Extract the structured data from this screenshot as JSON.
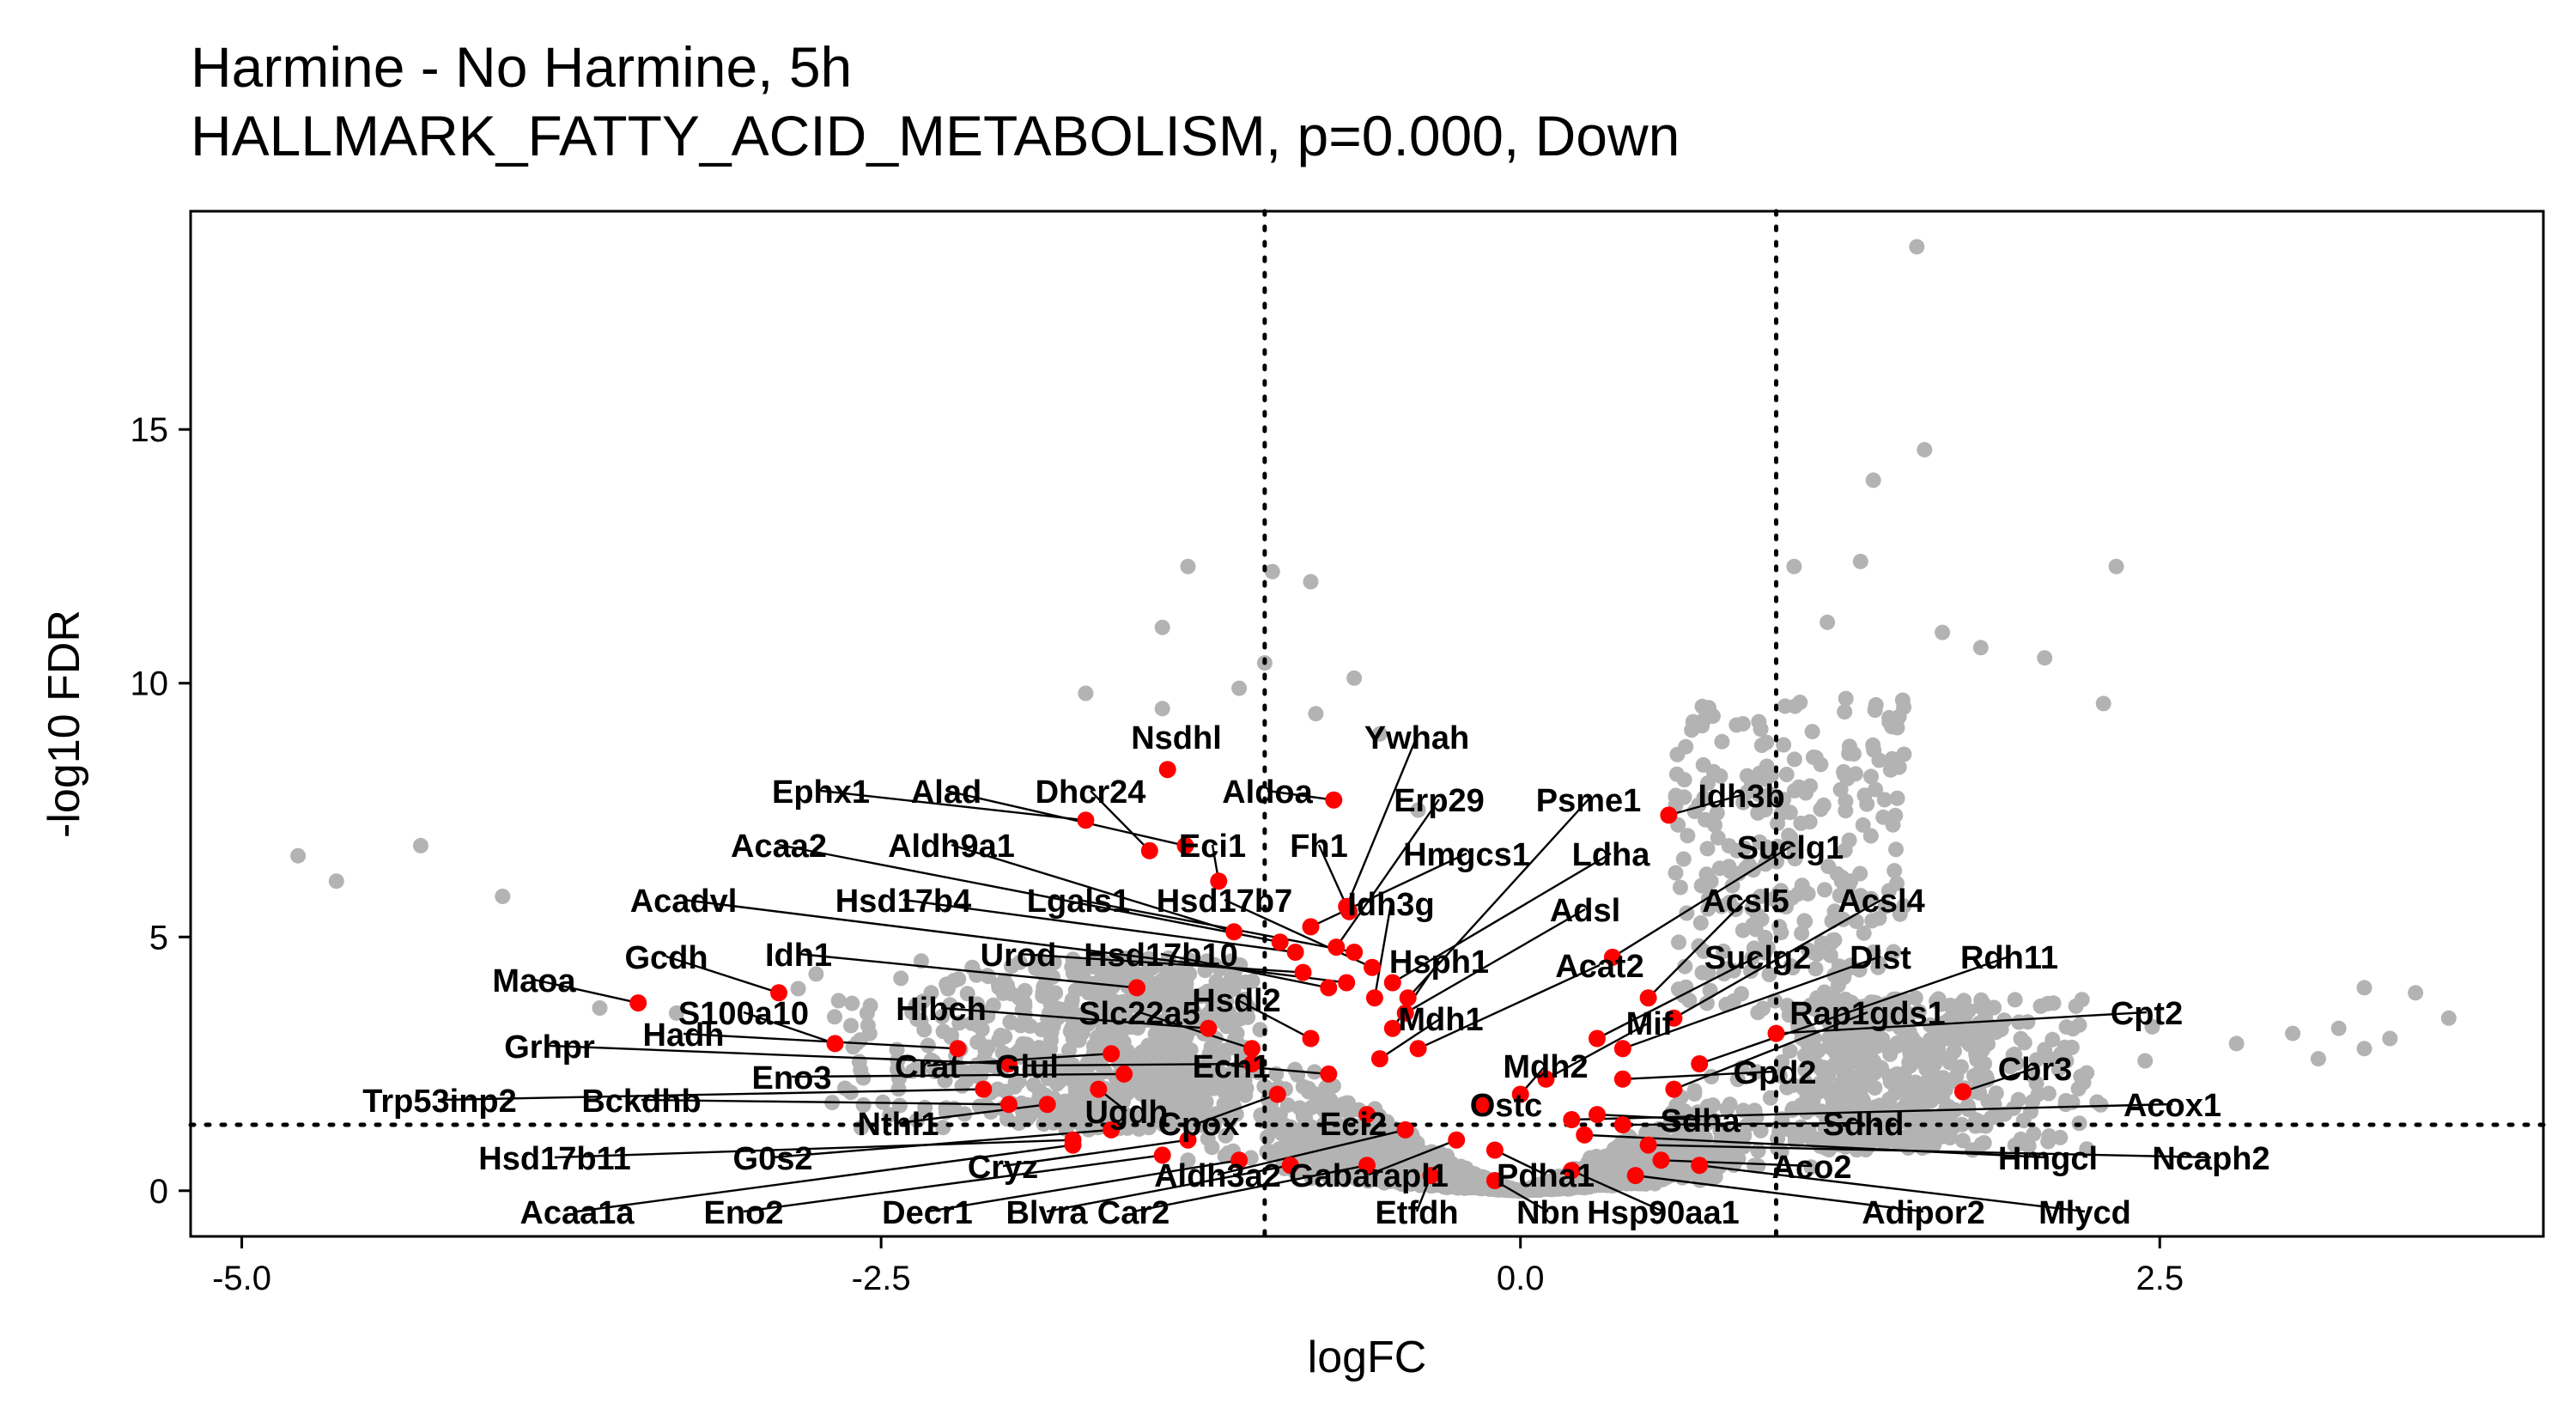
{
  "chart_data": {
    "type": "scatter",
    "title": "Harmine - No Harmine, 5h",
    "subtitle": "HALLMARK_FATTY_ACID_METABOLISM, p=0.000, Down",
    "xlabel": "logFC",
    "ylabel": "-log10 FDR",
    "xlim": [
      -5.2,
      4.0
    ],
    "ylim": [
      -0.9,
      19.3
    ],
    "xticks": [
      -5.0,
      -2.5,
      0.0,
      2.5
    ],
    "xtick_labels": [
      "-5.0",
      "-2.5",
      "0.0",
      "2.5"
    ],
    "yticks": [
      0,
      5,
      10,
      15
    ],
    "ytick_labels": [
      "0",
      "5",
      "10",
      "15"
    ],
    "grid": false,
    "legend": "none",
    "reference_lines": {
      "vertical": [
        -1,
        1
      ],
      "horizontal": [
        1.3
      ],
      "style": "dotted"
    },
    "colors": {
      "background_genes": "#b3b3b3",
      "pathway_genes": "#ff0000",
      "label_text": "#000000",
      "leader_lines": "#000000"
    },
    "background_points": [
      [
        -4.78,
        6.6
      ],
      [
        -4.63,
        6.1
      ],
      [
        -4.3,
        6.8
      ],
      [
        -3.98,
        5.8
      ],
      [
        -3.6,
        3.6
      ],
      [
        -3.3,
        3.5
      ],
      [
        1.55,
        18.6
      ],
      [
        1.58,
        14.6
      ],
      [
        1.38,
        14.0
      ],
      [
        2.33,
        12.3
      ],
      [
        1.07,
        12.3
      ],
      [
        1.33,
        12.4
      ],
      [
        1.2,
        11.2
      ],
      [
        1.65,
        11.0
      ],
      [
        1.8,
        10.7
      ],
      [
        2.05,
        10.5
      ],
      [
        2.28,
        9.6
      ],
      [
        0.87,
        9.2
      ],
      [
        1.5,
        8.6
      ],
      [
        3.3,
        4.0
      ],
      [
        3.5,
        3.9
      ],
      [
        3.63,
        3.4
      ],
      [
        3.2,
        3.2
      ],
      [
        3.4,
        3.0
      ],
      [
        3.3,
        2.8
      ],
      [
        3.02,
        3.1
      ],
      [
        2.8,
        2.9
      ],
      [
        3.12,
        2.6
      ],
      [
        -0.82,
        12.0
      ],
      [
        -0.97,
        12.2
      ],
      [
        -1.3,
        12.3
      ],
      [
        -1.4,
        11.1
      ],
      [
        -1.4,
        9.5
      ],
      [
        -1.1,
        9.9
      ],
      [
        -1.0,
        10.4
      ],
      [
        -1.7,
        9.8
      ],
      [
        -0.65,
        10.1
      ],
      [
        -0.8,
        9.4
      ],
      [
        -0.55,
        9.0
      ],
      [
        -0.4,
        7.5
      ]
    ],
    "points": [
      {
        "gene": "Nsdhl",
        "x": -1.38,
        "y": 8.3
      },
      {
        "gene": "Ywhah",
        "x": -0.68,
        "y": 5.6
      },
      {
        "gene": "Ephx1",
        "x": -1.7,
        "y": 7.3
      },
      {
        "gene": "Alad",
        "x": -1.31,
        "y": 6.8
      },
      {
        "gene": "Dhcr24",
        "x": -1.45,
        "y": 6.7
      },
      {
        "gene": "Aldoa",
        "x": -0.73,
        "y": 7.7
      },
      {
        "gene": "Erp29",
        "x": -0.72,
        "y": 4.8
      },
      {
        "gene": "Psme1",
        "x": -0.44,
        "y": 3.8
      },
      {
        "gene": "Idh3b",
        "x": 0.58,
        "y": 7.4
      },
      {
        "gene": "Eci1",
        "x": -1.18,
        "y": 6.1
      },
      {
        "gene": "Fh1",
        "x": -0.67,
        "y": 5.5
      },
      {
        "gene": "Hmgcs1",
        "x": -0.82,
        "y": 5.2
      },
      {
        "gene": "Ldha",
        "x": -0.5,
        "y": 4.1
      },
      {
        "gene": "Suclg1",
        "x": 0.36,
        "y": 4.6
      },
      {
        "gene": "Acaa2",
        "x": -0.94,
        "y": 4.9
      },
      {
        "gene": "Aldh9a1",
        "x": -1.12,
        "y": 5.1
      },
      {
        "gene": "Idh3g",
        "x": -0.57,
        "y": 3.8
      },
      {
        "gene": "Adsl",
        "x": -0.45,
        "y": 3.5
      },
      {
        "gene": "Acadvl",
        "x": -0.68,
        "y": 4.1
      },
      {
        "gene": "Hsd17b4",
        "x": -0.88,
        "y": 4.7
      },
      {
        "gene": "Lgals1",
        "x": -0.65,
        "y": 4.7
      },
      {
        "gene": "Hsd17b7",
        "x": -0.58,
        "y": 4.4
      },
      {
        "gene": "Acsl5",
        "x": 0.5,
        "y": 3.8
      },
      {
        "gene": "Acsl4",
        "x": 0.6,
        "y": 3.4
      },
      {
        "gene": "Idh1",
        "x": -1.5,
        "y": 4.0
      },
      {
        "gene": "Urod",
        "x": -0.85,
        "y": 4.3
      },
      {
        "gene": "Hsd17b10",
        "x": -0.75,
        "y": 4.0
      },
      {
        "gene": "Hsph1",
        "x": -0.5,
        "y": 3.2
      },
      {
        "gene": "Acat2",
        "x": -0.4,
        "y": 2.8
      },
      {
        "gene": "Suclg2",
        "x": 0.3,
        "y": 3.0
      },
      {
        "gene": "Dlst",
        "x": 0.4,
        "y": 2.8
      },
      {
        "gene": "Rdh11",
        "x": 0.7,
        "y": 2.5
      },
      {
        "gene": "Maoa",
        "x": -3.45,
        "y": 3.7
      },
      {
        "gene": "Gcdh",
        "x": -2.9,
        "y": 3.9
      },
      {
        "gene": "Hibch",
        "x": -1.22,
        "y": 3.2
      },
      {
        "gene": "Hsdl2",
        "x": -0.82,
        "y": 3.0
      },
      {
        "gene": "Mdh1",
        "x": -0.55,
        "y": 2.6
      },
      {
        "gene": "Mif",
        "x": 0.1,
        "y": 2.2
      },
      {
        "gene": "Rap1gds1",
        "x": 0.6,
        "y": 2.0
      },
      {
        "gene": "Cpt2",
        "x": 1.0,
        "y": 3.1
      },
      {
        "gene": "S100a10",
        "x": -2.68,
        "y": 2.9
      },
      {
        "gene": "Hadh",
        "x": -2.2,
        "y": 2.8
      },
      {
        "gene": "Slc22a5",
        "x": -1.05,
        "y": 2.8
      },
      {
        "gene": "Grhpr",
        "x": -2.0,
        "y": 2.5
      },
      {
        "gene": "Eno3",
        "x": -1.55,
        "y": 2.3
      },
      {
        "gene": "Crat",
        "x": -1.6,
        "y": 2.7
      },
      {
        "gene": "Glul",
        "x": -1.05,
        "y": 2.5
      },
      {
        "gene": "Ech1",
        "x": -0.75,
        "y": 2.3
      },
      {
        "gene": "Mdh2",
        "x": 0.0,
        "y": 1.9
      },
      {
        "gene": "Gpd2",
        "x": 0.4,
        "y": 2.2
      },
      {
        "gene": "Cbr3",
        "x": 1.73,
        "y": 1.95
      },
      {
        "gene": "Trp53inp2",
        "x": -2.1,
        "y": 2.0
      },
      {
        "gene": "Bckdhb",
        "x": -2.0,
        "y": 1.7
      },
      {
        "gene": "Nthl1",
        "x": -1.85,
        "y": 1.7
      },
      {
        "gene": "Ugdh",
        "x": -1.65,
        "y": 2.0
      },
      {
        "gene": "Ostc",
        "x": -0.15,
        "y": 1.7
      },
      {
        "gene": "Sdha",
        "x": 0.3,
        "y": 1.5
      },
      {
        "gene": "Sdhd",
        "x": 0.4,
        "y": 1.3
      },
      {
        "gene": "Acox1",
        "x": 0.2,
        "y": 1.4
      },
      {
        "gene": "Cpox",
        "x": -0.95,
        "y": 1.9
      },
      {
        "gene": "Eci2",
        "x": -0.6,
        "y": 1.5
      },
      {
        "gene": "Hsd17b11",
        "x": -1.75,
        "y": 1.0
      },
      {
        "gene": "G0s2",
        "x": -1.6,
        "y": 1.2
      },
      {
        "gene": "Cryz",
        "x": -1.3,
        "y": 1.0
      },
      {
        "gene": "Aldh3a2",
        "x": -0.45,
        "y": 1.2
      },
      {
        "gene": "Gabarapl1",
        "x": -0.25,
        "y": 1.0
      },
      {
        "gene": "Pdha1",
        "x": -0.1,
        "y": 0.8
      },
      {
        "gene": "Hmgcl",
        "x": 0.25,
        "y": 1.1
      },
      {
        "gene": "Ncaph2",
        "x": 0.5,
        "y": 0.9
      },
      {
        "gene": "Aco2",
        "x": 0.55,
        "y": 0.6
      },
      {
        "gene": "Acaa1a",
        "x": -1.75,
        "y": 0.9
      },
      {
        "gene": "Eno2",
        "x": -1.4,
        "y": 0.7
      },
      {
        "gene": "Decr1",
        "x": -1.1,
        "y": 0.6
      },
      {
        "gene": "Blvra",
        "x": -0.9,
        "y": 0.5
      },
      {
        "gene": "Car2",
        "x": -0.6,
        "y": 0.5
      },
      {
        "gene": "Etfdh",
        "x": -0.35,
        "y": 0.3
      },
      {
        "gene": "Nbn",
        "x": -0.1,
        "y": 0.2
      },
      {
        "gene": "Hsp90aa1",
        "x": 0.2,
        "y": 0.4
      },
      {
        "gene": "Adipor2",
        "x": 0.45,
        "y": 0.3
      },
      {
        "gene": "Mlycd",
        "x": 0.7,
        "y": 0.5
      }
    ]
  }
}
